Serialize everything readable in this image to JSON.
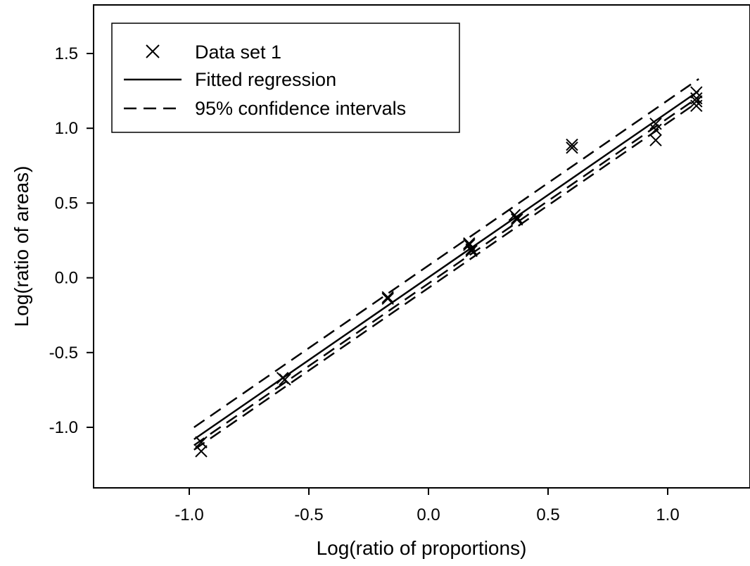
{
  "chart_data": {
    "type": "scatter",
    "title": "",
    "xlabel": "Log(ratio of proportions)",
    "ylabel": "Log(ratio of areas)",
    "xlim": [
      -1.4,
      1.4
    ],
    "ylim": [
      -1.4,
      1.8
    ],
    "xticks": [
      -1.0,
      -0.5,
      0.0,
      0.5,
      1.0
    ],
    "xtick_labels": [
      "-1.0",
      "-0.5",
      "0.0",
      "0.5",
      "1.0"
    ],
    "yticks": [
      -1.0,
      -0.5,
      0.0,
      0.5,
      1.0,
      1.5
    ],
    "ytick_labels": [
      "-1.0",
      "-0.5",
      "0.0",
      "0.5",
      "1.0",
      "1.5"
    ],
    "grid": false,
    "legend_position": "top-left",
    "series": [
      {
        "name": "Data set 1",
        "kind": "points",
        "marker": "x",
        "points": [
          [
            -0.95,
            -1.1
          ],
          [
            -0.95,
            -1.16
          ],
          [
            -0.61,
            -0.67
          ],
          [
            -0.6,
            -0.68
          ],
          [
            -0.17,
            -0.14
          ],
          [
            -0.17,
            -0.13
          ],
          [
            0.17,
            0.22
          ],
          [
            0.17,
            0.23
          ],
          [
            0.18,
            0.18
          ],
          [
            0.18,
            0.19
          ],
          [
            0.36,
            0.42
          ],
          [
            0.37,
            0.4
          ],
          [
            0.37,
            0.39
          ],
          [
            0.6,
            0.87
          ],
          [
            0.6,
            0.89
          ],
          [
            0.95,
            1.03
          ],
          [
            0.95,
            0.99
          ],
          [
            0.95,
            0.92
          ],
          [
            1.12,
            1.2
          ],
          [
            1.12,
            1.15
          ],
          [
            1.12,
            1.18
          ],
          [
            1.12,
            1.24
          ]
        ]
      },
      {
        "name": "Fitted regression",
        "kind": "line",
        "dash": "solid",
        "x": [
          -0.98,
          1.13
        ],
        "y": [
          -1.08,
          1.25
        ]
      },
      {
        "name": "95% confidence intervals",
        "kind": "line",
        "dash": "dashed",
        "x": [
          -0.98,
          1.13
        ],
        "y": [
          -1.0,
          1.33
        ]
      },
      {
        "name": "95% confidence intervals",
        "kind": "line",
        "dash": "dashed",
        "x": [
          -0.98,
          1.13
        ],
        "y": [
          -1.15,
          1.18
        ]
      },
      {
        "name": "95% confidence intervals",
        "kind": "line",
        "dash": "dashed",
        "x": [
          -0.98,
          1.13
        ],
        "y": [
          -1.12,
          1.21
        ]
      }
    ]
  },
  "legend": {
    "items": [
      {
        "label": "Data set 1",
        "symbol": "marker-x"
      },
      {
        "label": "Fitted regression",
        "symbol": "solid-line"
      },
      {
        "label": "95% confidence intervals",
        "symbol": "dashed-line"
      }
    ]
  },
  "colors": {
    "ink": "#000000",
    "background": "#ffffff"
  }
}
